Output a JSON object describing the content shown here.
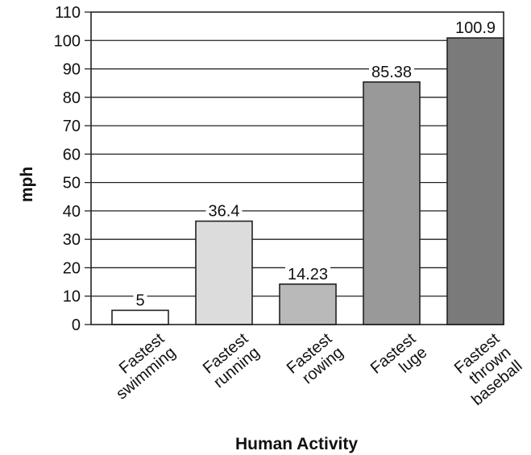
{
  "chart_data": {
    "type": "bar",
    "title": "",
    "xlabel": "Human Activity",
    "ylabel": "mph",
    "ylim": [
      0,
      110
    ],
    "yticks": [
      0,
      10,
      20,
      30,
      40,
      50,
      60,
      70,
      80,
      90,
      100,
      110
    ],
    "grid": true,
    "categories": [
      "Fastest swimming",
      "Fastest running",
      "Fastest rowing",
      "Fastest luge",
      "Fastest thrown baseball"
    ],
    "category_lines": [
      [
        "Fastest",
        "swimming"
      ],
      [
        "Fastest",
        "running"
      ],
      [
        "Fastest",
        "rowing"
      ],
      [
        "Fastest",
        "luge"
      ],
      [
        "Fastest",
        "thrown",
        "baseball"
      ]
    ],
    "values": [
      5,
      36.4,
      14.23,
      85.38,
      100.9
    ],
    "value_labels": [
      "5",
      "36.4",
      "14.23",
      "85.38",
      "100.9"
    ],
    "bar_colors": [
      "#ffffff",
      "#dcdcdc",
      "#b9b9b9",
      "#999999",
      "#7a7a7a"
    ]
  }
}
